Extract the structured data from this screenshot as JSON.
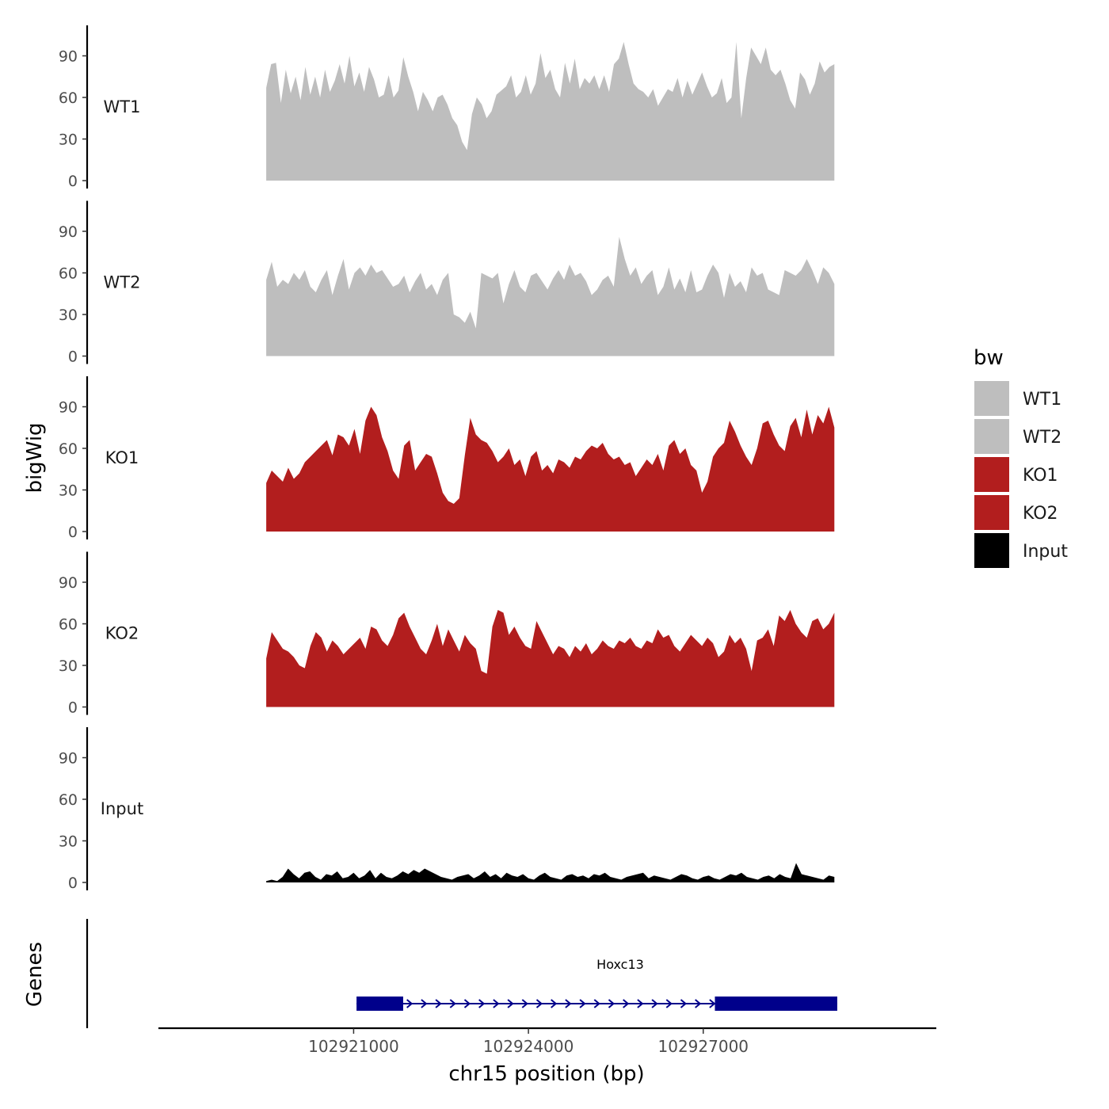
{
  "chart_data": {
    "type": "area",
    "ylabel": "bigWig",
    "xlabel": "chr15 position (bp)",
    "ylim": [
      0,
      112
    ],
    "yticks": [
      0,
      30,
      60,
      90
    ],
    "xlim": [
      102917650,
      102931000
    ],
    "xticks": [
      102921000,
      102924000,
      102927000
    ],
    "xtick_labels": [
      "102921000",
      "102924000",
      "102927000"
    ],
    "track_range": [
      102919500,
      102929250
    ],
    "tracks": [
      {
        "name": "WT1",
        "color": "#bebebe",
        "values": [
          67,
          84,
          85,
          56,
          80,
          63,
          75,
          58,
          82,
          62,
          75,
          60,
          80,
          64,
          72,
          84,
          70,
          90,
          68,
          78,
          64,
          82,
          73,
          60,
          62,
          76,
          60,
          65,
          89,
          75,
          64,
          50,
          64,
          58,
          50,
          60,
          62,
          55,
          45,
          40,
          28,
          22,
          48,
          60,
          55,
          45,
          50,
          62,
          65,
          68,
          76,
          60,
          64,
          76,
          62,
          70,
          92,
          74,
          80,
          66,
          60,
          85,
          70,
          88,
          66,
          74,
          70,
          76,
          66,
          76,
          64,
          84,
          88,
          100,
          84,
          70,
          66,
          64,
          60,
          66,
          54,
          60,
          66,
          64,
          74,
          60,
          72,
          62,
          70,
          78,
          68,
          60,
          63,
          74,
          56,
          60,
          100,
          45,
          74,
          96,
          90,
          84,
          96,
          80,
          76,
          80,
          70,
          58,
          52,
          78,
          73,
          62,
          70,
          86,
          78,
          82,
          84
        ]
      },
      {
        "name": "WT2",
        "color": "#bebebe",
        "values": [
          55,
          68,
          50,
          55,
          52,
          60,
          55,
          62,
          50,
          46,
          55,
          62,
          44,
          58,
          70,
          48,
          60,
          64,
          58,
          66,
          60,
          62,
          56,
          50,
          52,
          58,
          46,
          54,
          60,
          48,
          52,
          44,
          55,
          60,
          30,
          28,
          24,
          32,
          20,
          60,
          58,
          56,
          60,
          38,
          52,
          62,
          50,
          46,
          58,
          60,
          54,
          48,
          56,
          62,
          55,
          66,
          58,
          60,
          54,
          44,
          48,
          55,
          58,
          50,
          86,
          70,
          58,
          64,
          52,
          58,
          62,
          44,
          50,
          64,
          48,
          56,
          46,
          62,
          46,
          48,
          58,
          66,
          60,
          42,
          60,
          50,
          54,
          46,
          64,
          58,
          60,
          48,
          46,
          44,
          62,
          60,
          58,
          62,
          70,
          62,
          52,
          64,
          60,
          52
        ]
      },
      {
        "name": "KO1",
        "color": "#b21e1e",
        "values": [
          35,
          44,
          40,
          36,
          46,
          38,
          42,
          50,
          54,
          58,
          62,
          66,
          55,
          70,
          68,
          62,
          74,
          56,
          80,
          90,
          84,
          68,
          58,
          44,
          38,
          62,
          66,
          44,
          50,
          56,
          54,
          42,
          28,
          22,
          20,
          24,
          55,
          82,
          70,
          66,
          64,
          58,
          50,
          54,
          60,
          48,
          52,
          40,
          54,
          58,
          44,
          48,
          42,
          52,
          50,
          46,
          54,
          52,
          58,
          62,
          60,
          64,
          56,
          52,
          54,
          48,
          50,
          40,
          46,
          52,
          48,
          56,
          44,
          62,
          66,
          56,
          60,
          48,
          44,
          28,
          36,
          54,
          60,
          64,
          80,
          72,
          62,
          54,
          48,
          60,
          78,
          80,
          70,
          62,
          58,
          76,
          82,
          68,
          88,
          70,
          84,
          78,
          90,
          75
        ]
      },
      {
        "name": "KO2",
        "color": "#b21e1e",
        "values": [
          35,
          54,
          48,
          42,
          40,
          36,
          30,
          28,
          44,
          54,
          50,
          40,
          48,
          44,
          38,
          42,
          46,
          50,
          42,
          58,
          56,
          48,
          44,
          52,
          64,
          68,
          58,
          50,
          42,
          38,
          48,
          60,
          44,
          56,
          48,
          40,
          52,
          46,
          42,
          26,
          24,
          58,
          70,
          68,
          52,
          58,
          50,
          44,
          42,
          62,
          54,
          46,
          38,
          44,
          42,
          36,
          44,
          40,
          46,
          38,
          42,
          48,
          44,
          42,
          48,
          46,
          50,
          44,
          42,
          48,
          46,
          56,
          50,
          52,
          44,
          40,
          46,
          52,
          48,
          44,
          50,
          46,
          36,
          40,
          52,
          46,
          50,
          42,
          26,
          48,
          50,
          56,
          44,
          66,
          62,
          70,
          60,
          54,
          50,
          62,
          64,
          56,
          60,
          68
        ]
      },
      {
        "name": "Input",
        "color": "#000000",
        "values": [
          1,
          2,
          1,
          4,
          10,
          6,
          3,
          7,
          8,
          4,
          2,
          6,
          5,
          8,
          3,
          4,
          7,
          3,
          5,
          9,
          3,
          7,
          4,
          3,
          5,
          8,
          6,
          9,
          7,
          10,
          8,
          6,
          4,
          3,
          2,
          4,
          5,
          6,
          3,
          5,
          8,
          4,
          6,
          3,
          7,
          5,
          4,
          6,
          3,
          2,
          5,
          7,
          4,
          3,
          2,
          5,
          6,
          4,
          5,
          3,
          6,
          5,
          7,
          4,
          3,
          2,
          4,
          5,
          6,
          7,
          3,
          5,
          4,
          3,
          2,
          4,
          6,
          5,
          3,
          2,
          4,
          5,
          3,
          2,
          4,
          6,
          5,
          7,
          4,
          3,
          2,
          4,
          5,
          3,
          6,
          4,
          3,
          14,
          6,
          5,
          4,
          3,
          2,
          5,
          4
        ]
      }
    ],
    "legend": {
      "title": "bw",
      "entries": [
        {
          "label": "WT1",
          "color": "#bebebe"
        },
        {
          "label": "WT2",
          "color": "#bebebe"
        },
        {
          "label": "KO1",
          "color": "#b21e1e"
        },
        {
          "label": "KO2",
          "color": "#b21e1e"
        },
        {
          "label": "Input",
          "color": "#000000"
        }
      ]
    },
    "genes_track": {
      "label": "Genes",
      "gene_name": "Hoxc13",
      "color": "#00008b",
      "gene_start": 102921050,
      "gene_end": 102929300,
      "strand": "+",
      "exons": [
        [
          102921050,
          102921850
        ],
        [
          102927200,
          102929300
        ]
      ]
    }
  }
}
